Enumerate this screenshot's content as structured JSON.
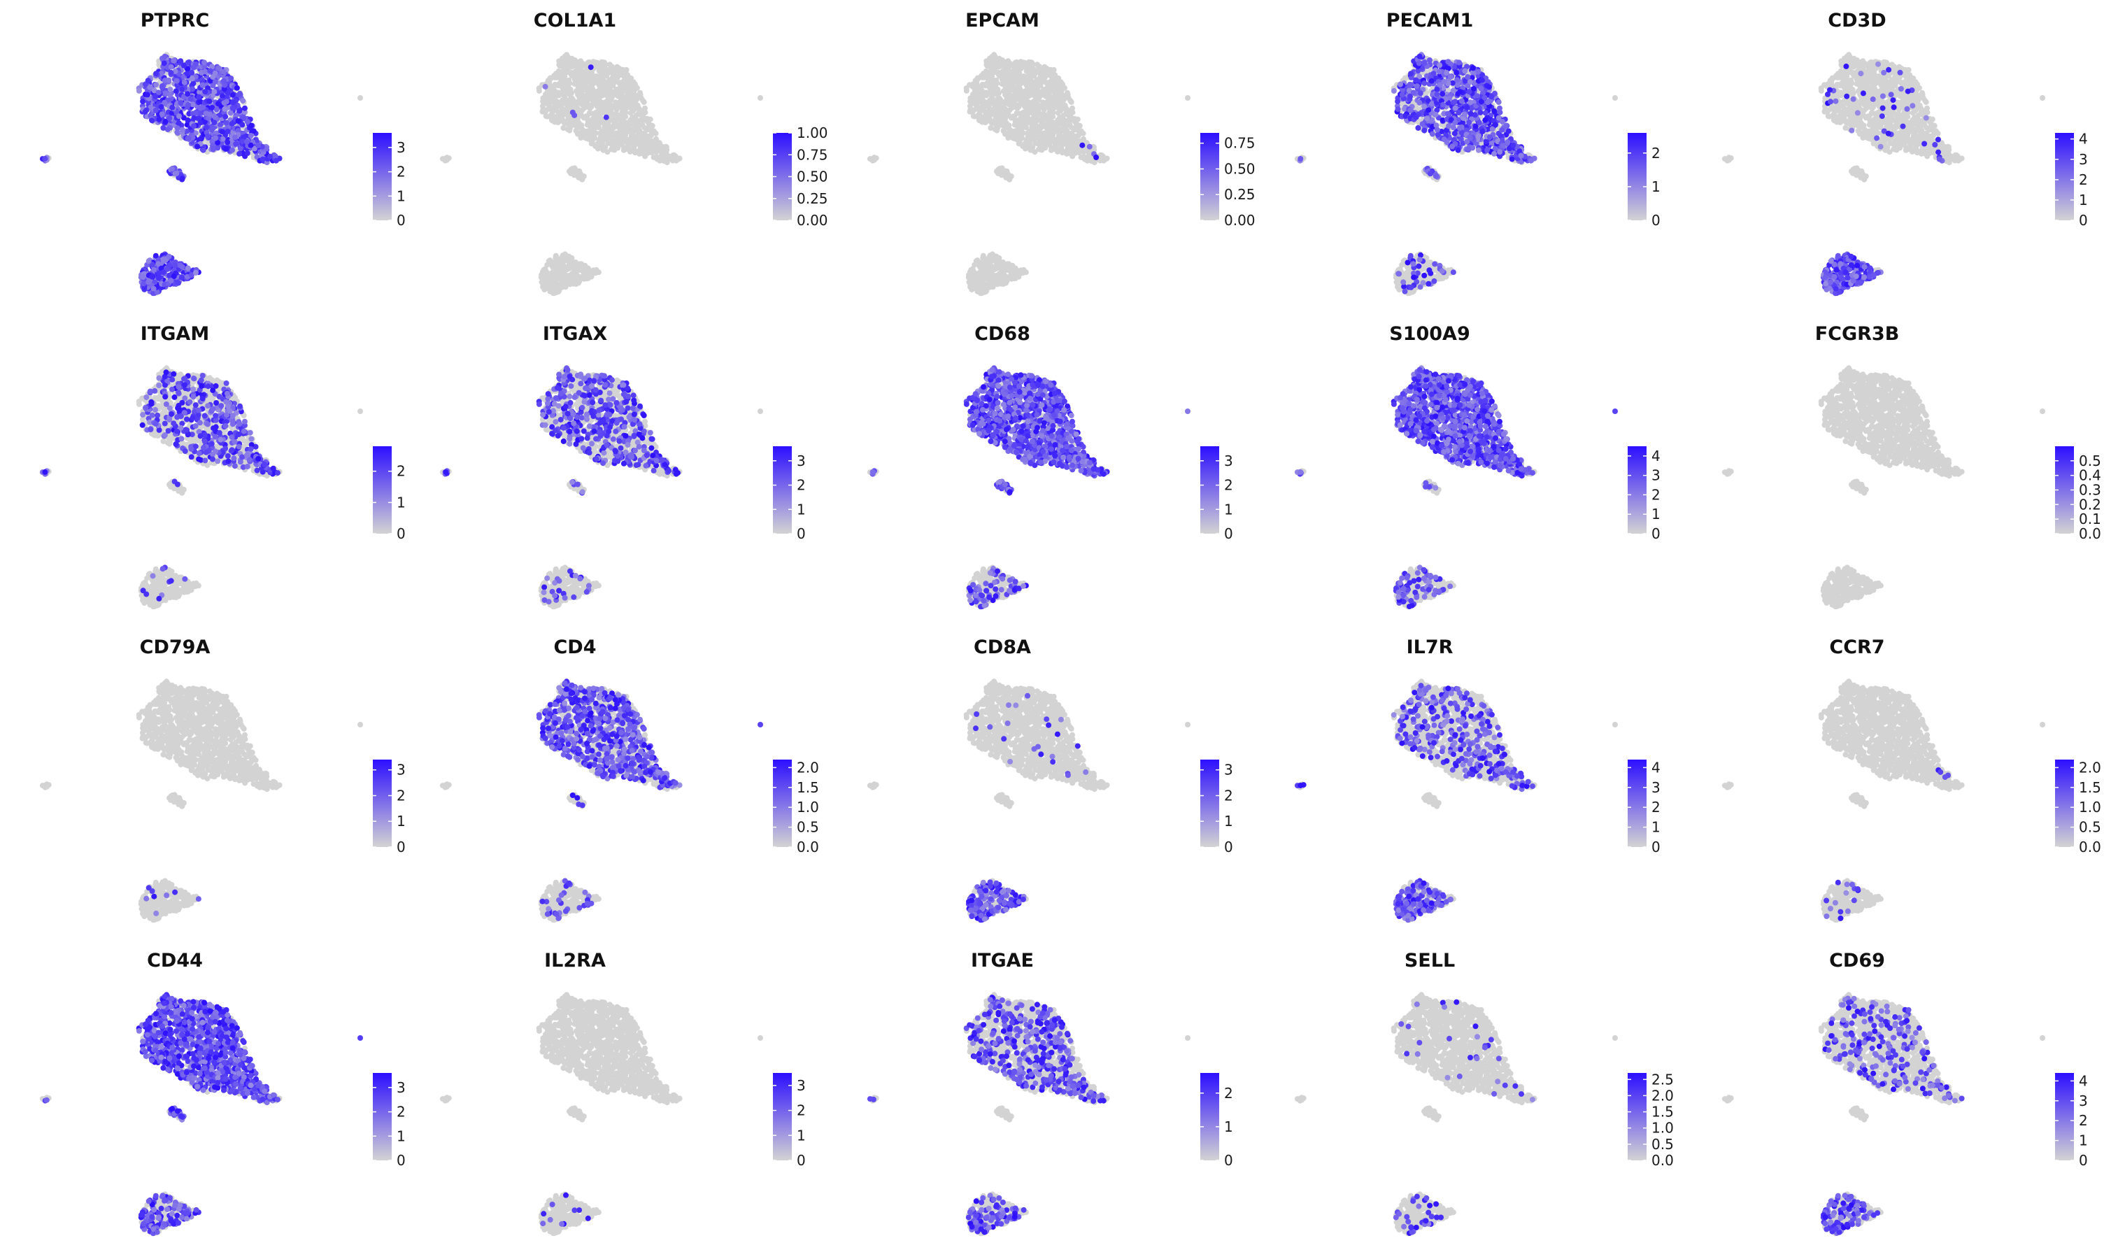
{
  "chart_data": {
    "type": "scatter",
    "panels": [
      {
        "gene": "PTPRC",
        "legend_ticks": [
          "0",
          "1",
          "2",
          "3"
        ],
        "max": 3.6,
        "pattern": {
          "main": 0.72,
          "left": 0.55,
          "tail": 0.75,
          "bottom": 0.8,
          "island": 0.8,
          "cluster": 0.95
        }
      },
      {
        "gene": "COL1A1",
        "legend_ticks": [
          "0.00",
          "0.25",
          "0.50",
          "0.75",
          "1.00"
        ],
        "max": 1.0,
        "pattern": {
          "main": 0.01,
          "left": 0,
          "tail": 0,
          "bottom": 0,
          "island": 0,
          "cluster": 0
        }
      },
      {
        "gene": "EPCAM",
        "legend_ticks": [
          "0.00",
          "0.25",
          "0.50",
          "0.75"
        ],
        "max": 0.85,
        "pattern": {
          "main": 0,
          "left": 0,
          "tail": 0.08,
          "bottom": 0,
          "island": 0,
          "cluster": 0
        }
      },
      {
        "gene": "PECAM1",
        "legend_ticks": [
          "0",
          "1",
          "2"
        ],
        "max": 2.6,
        "pattern": {
          "main": 0.6,
          "left": 0.4,
          "tail": 0.5,
          "bottom": 0.2,
          "island": 0.3,
          "cluster": 0.2
        }
      },
      {
        "gene": "CD3D",
        "legend_ticks": [
          "0",
          "1",
          "2",
          "3",
          "4"
        ],
        "max": 4.3,
        "pattern": {
          "main": 0.04,
          "left": 0,
          "tail": 0.05,
          "bottom": 0.05,
          "island": 0,
          "cluster": 0.9
        }
      },
      {
        "gene": "ITGAM",
        "legend_ticks": [
          "0",
          "1",
          "2"
        ],
        "max": 2.8,
        "pattern": {
          "main": 0.35,
          "left": 0.6,
          "tail": 0.5,
          "bottom": 0.1,
          "island": 0.1,
          "cluster": 0.04
        }
      },
      {
        "gene": "ITGAX",
        "legend_ticks": [
          "0",
          "1",
          "2",
          "3"
        ],
        "max": 3.6,
        "pattern": {
          "main": 0.38,
          "left": 0.6,
          "tail": 0.4,
          "bottom": 0.2,
          "island": 0.2,
          "cluster": 0.1
        }
      },
      {
        "gene": "CD68",
        "legend_ticks": [
          "0",
          "1",
          "2",
          "3"
        ],
        "max": 3.6,
        "pattern": {
          "main": 0.9,
          "left": 0.5,
          "tail": 0.6,
          "bottom": 0.85,
          "island": 0.9,
          "cluster": 0.25
        }
      },
      {
        "gene": "S100A9",
        "legend_ticks": [
          "0",
          "1",
          "2",
          "3",
          "4"
        ],
        "max": 4.5,
        "pattern": {
          "main": 0.9,
          "left": 0.6,
          "tail": 0.5,
          "bottom": 0.8,
          "island": 0.1,
          "cluster": 0.35
        }
      },
      {
        "gene": "FCGR3B",
        "legend_ticks": [
          "0.0",
          "0.1",
          "0.2",
          "0.3",
          "0.4",
          "0.5"
        ],
        "max": 0.6,
        "pattern": {
          "main": 0,
          "left": 0,
          "tail": 0,
          "bottom": 0,
          "island": 0,
          "cluster": 0
        }
      },
      {
        "gene": "CD79A",
        "legend_ticks": [
          "0",
          "1",
          "2",
          "3"
        ],
        "max": 3.4,
        "pattern": {
          "main": 0,
          "left": 0,
          "tail": 0,
          "bottom": 0,
          "island": 0,
          "cluster": 0.03
        }
      },
      {
        "gene": "CD4",
        "legend_ticks": [
          "0.0",
          "0.5",
          "1.0",
          "1.5",
          "2.0"
        ],
        "max": 2.2,
        "pattern": {
          "main": 0.5,
          "left": 0,
          "tail": 0.6,
          "bottom": 0.4,
          "island": 0.2,
          "cluster": 0.15
        }
      },
      {
        "gene": "CD8A",
        "legend_ticks": [
          "0",
          "1",
          "2",
          "3"
        ],
        "max": 3.4,
        "pattern": {
          "main": 0.02,
          "left": 0,
          "tail": 0.05,
          "bottom": 0,
          "island": 0,
          "cluster": 0.6
        }
      },
      {
        "gene": "IL7R",
        "legend_ticks": [
          "0",
          "1",
          "2",
          "3",
          "4"
        ],
        "max": 4.4,
        "pattern": {
          "main": 0.25,
          "left": 0.4,
          "tail": 0.3,
          "bottom": 0.05,
          "island": 0,
          "cluster": 0.65
        }
      },
      {
        "gene": "CCR7",
        "legend_ticks": [
          "0.0",
          "0.5",
          "1.0",
          "1.5",
          "2.0"
        ],
        "max": 2.2,
        "pattern": {
          "main": 0,
          "left": 0,
          "tail": 0.05,
          "bottom": 0,
          "island": 0,
          "cluster": 0.06
        }
      },
      {
        "gene": "CD44",
        "legend_ticks": [
          "0",
          "1",
          "2",
          "3"
        ],
        "max": 3.6,
        "pattern": {
          "main": 0.82,
          "left": 0.5,
          "tail": 0.7,
          "bottom": 0.75,
          "island": 0.8,
          "cluster": 0.5
        }
      },
      {
        "gene": "IL2RA",
        "legend_ticks": [
          "0",
          "1",
          "2",
          "3"
        ],
        "max": 3.5,
        "pattern": {
          "main": 0,
          "left": 0,
          "tail": 0,
          "bottom": 0,
          "island": 0,
          "cluster": 0.06
        }
      },
      {
        "gene": "ITGAE",
        "legend_ticks": [
          "0",
          "1",
          "2"
        ],
        "max": 2.6,
        "pattern": {
          "main": 0.3,
          "left": 0.4,
          "tail": 0.3,
          "bottom": 0.1,
          "island": 0,
          "cluster": 0.4
        }
      },
      {
        "gene": "SELL",
        "legend_ticks": [
          "0.0",
          "0.5",
          "1.0",
          "1.5",
          "2.0",
          "2.5"
        ],
        "max": 2.7,
        "pattern": {
          "main": 0.02,
          "left": 0,
          "tail": 0.1,
          "bottom": 0,
          "island": 0,
          "cluster": 0.15
        }
      },
      {
        "gene": "CD69",
        "legend_ticks": [
          "0",
          "1",
          "2",
          "3",
          "4"
        ],
        "max": 4.4,
        "pattern": {
          "main": 0.15,
          "left": 0,
          "tail": 0.15,
          "bottom": 0.05,
          "island": 0,
          "cluster": 0.4
        }
      }
    ],
    "color_low": "#d3d3d3",
    "color_high": "#2d0fff",
    "grid": false,
    "legend_placement": "right"
  }
}
